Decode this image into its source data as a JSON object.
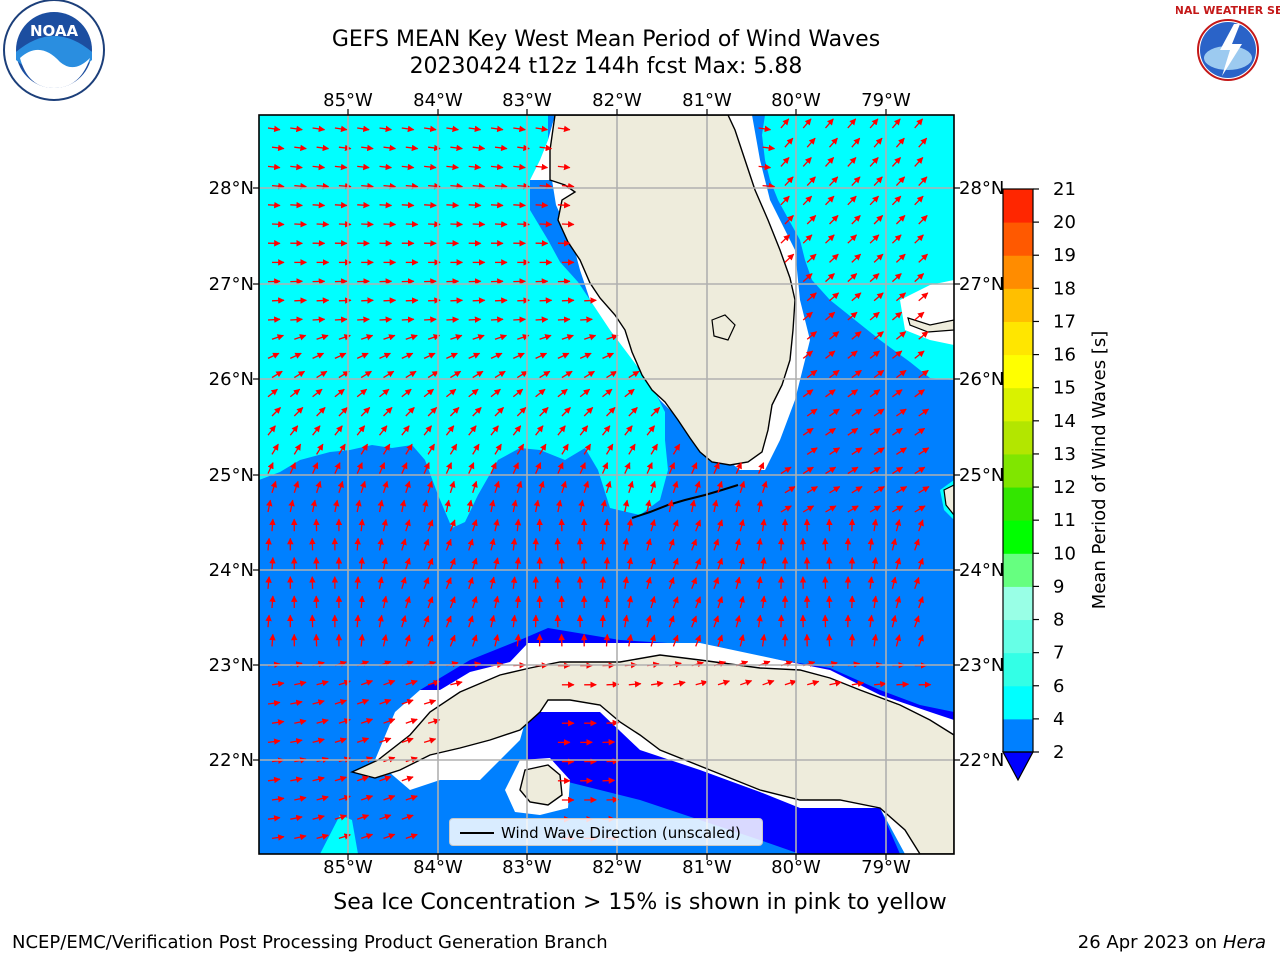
{
  "title": {
    "line1": "GEFS MEAN Key West Mean Period of Wind Waves",
    "line2": "20230424 t12z 144h fcst   Max: 5.88"
  },
  "map": {
    "lon_labels": [
      "85°W",
      "84°W",
      "83°W",
      "82°W",
      "81°W",
      "80°W",
      "79°W"
    ],
    "lat_labels": [
      "28°N",
      "27°N",
      "26°N",
      "25°N",
      "24°N",
      "23°N",
      "22°N"
    ],
    "legend_label": "Wind Wave Direction (unscaled)",
    "arrow_color": "#ff0000",
    "land_color": "#eeecdc",
    "cyan_color": "#00ffff",
    "blue_color": "#0080ff",
    "deep_blue_color": "#0000ff",
    "grid_color": "#b0b0b0"
  },
  "colorbar": {
    "label": "Mean Period of Wind Waves [s]",
    "ticks": [
      "2",
      "4",
      "6",
      "7",
      "8",
      "9",
      "10",
      "11",
      "12",
      "13",
      "14",
      "15",
      "16",
      "17",
      "18",
      "19",
      "20",
      "21"
    ],
    "colors": [
      "#0080ff",
      "#00ffff",
      "#33ffe6",
      "#66ffe6",
      "#99ffe6",
      "#66ff80",
      "#00ff00",
      "#33e600",
      "#80e600",
      "#b3e600",
      "#d9f200",
      "#ffff00",
      "#ffe600",
      "#ffbf00",
      "#ff8c00",
      "#ff5900",
      "#ff2600"
    ],
    "under_color": "#0000ff"
  },
  "footer": {
    "note": "Sea Ice Concentration > 15% is shown in pink to yellow",
    "credit_left": "NCEP/EMC/Verification Post Processing Product Generation Branch",
    "credit_date": "26 Apr 2023 on",
    "credit_host": "Hera"
  },
  "logos": {
    "noaa_text": "NOAA",
    "nws_text": "NATIONAL WEATHER SERVICE"
  }
}
